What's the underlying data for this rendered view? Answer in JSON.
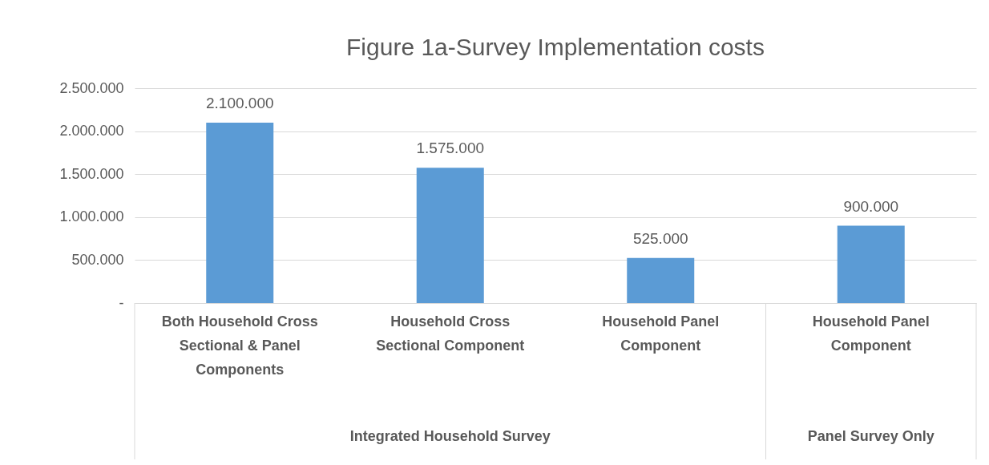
{
  "chart_data": {
    "type": "bar",
    "title": "Figure 1a-Survey Implementation costs",
    "categories": [
      "Both Household Cross Sectional & Panel Components",
      "Household Cross Sectional Component",
      "Household Panel Component",
      "Household Panel Component"
    ],
    "values": [
      2100000,
      1575000,
      525000,
      900000
    ],
    "value_labels": [
      "2.100.000",
      "1.575.000",
      "525.000",
      "900.000"
    ],
    "color": "#5b9bd5",
    "ylim": [
      0,
      2500000
    ],
    "yticks": [
      {
        "value": 0,
        "label": "-"
      },
      {
        "value": 500000,
        "label": "500.000"
      },
      {
        "value": 1000000,
        "label": "1.000.000"
      },
      {
        "value": 1500000,
        "label": "1.500.000"
      },
      {
        "value": 2000000,
        "label": "2.000.000"
      },
      {
        "value": 2500000,
        "label": "2.500.000"
      }
    ],
    "grid": true,
    "annotations": [
      "Integrated Household Survey",
      "Panel Survey Only"
    ]
  }
}
